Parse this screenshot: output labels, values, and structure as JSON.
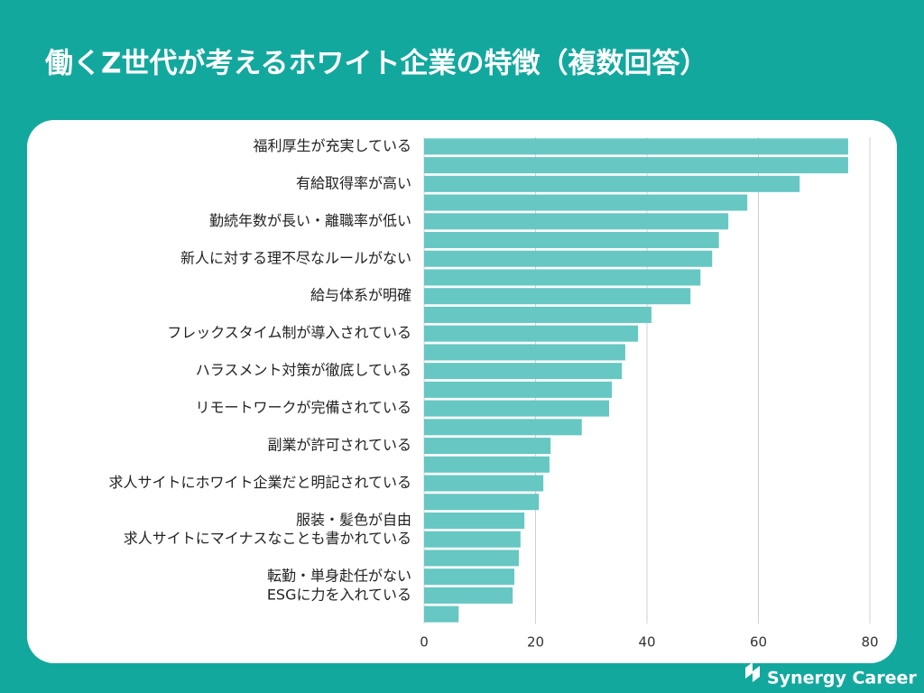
{
  "chart_data": {
    "type": "hbar",
    "title": "働くZ世代が考えるホワイト企業の特徴（複数回答）",
    "categories": [
      "福利厚生が充実している",
      null,
      "有給取得率が高い",
      null,
      "勤続年数が長い・離職率が低い",
      null,
      "新人に対する理不尽なルールがない",
      null,
      "給与体系が明確",
      null,
      "フレックスタイム制が導入されている",
      null,
      "ハラスメント対策が徹底している",
      null,
      "リモートワークが完備されている",
      null,
      "副業が許可されている",
      null,
      "求人サイトにホワイト企業だと明記されている",
      null,
      "服装・髪色が自由",
      "求人サイトにマイナスなことも書かれている",
      null,
      "転勤・単身赴任がない",
      "ESGに力を入れている",
      null
    ],
    "values": [
      76.1,
      76.1,
      67.4,
      58.0,
      54.6,
      52.9,
      51.7,
      49.6,
      47.8,
      40.8,
      38.4,
      36.1,
      35.5,
      33.7,
      33.2,
      28.3,
      22.7,
      22.5,
      21.4,
      20.6,
      18.0,
      17.3,
      17.0,
      16.2,
      15.9,
      6.2
    ],
    "color": "#66c7c3",
    "xlim": [
      0,
      80
    ],
    "xticks": [
      0,
      20,
      40,
      60,
      80
    ],
    "grid": true
  },
  "brand": "Synergy Career"
}
